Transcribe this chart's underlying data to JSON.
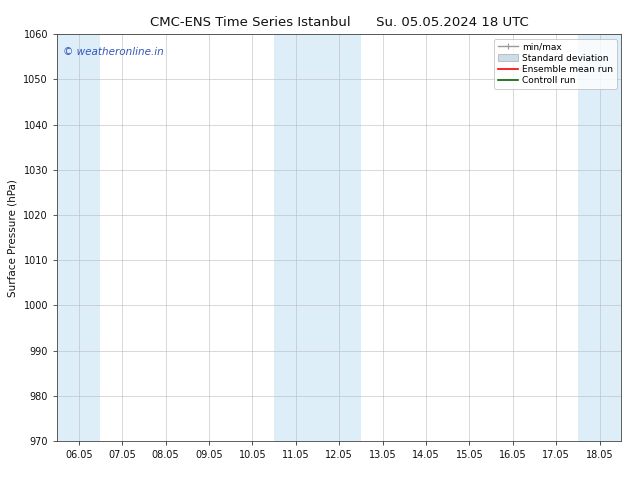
{
  "title": "CMC-ENS Time Series Istanbul",
  "title2": "Su. 05.05.2024 18 UTC",
  "ylabel": "Surface Pressure (hPa)",
  "ylim": [
    970,
    1060
  ],
  "yticks": [
    970,
    980,
    990,
    1000,
    1010,
    1020,
    1030,
    1040,
    1050,
    1060
  ],
  "xtick_labels": [
    "06.05",
    "07.05",
    "08.05",
    "09.05",
    "10.05",
    "11.05",
    "12.05",
    "13.05",
    "14.05",
    "15.05",
    "16.05",
    "17.05",
    "18.05"
  ],
  "xtick_positions": [
    0,
    1,
    2,
    3,
    4,
    5,
    6,
    7,
    8,
    9,
    10,
    11,
    12
  ],
  "xlim": [
    -0.5,
    12.5
  ],
  "shaded_regions": [
    {
      "xmin": -0.5,
      "xmax": 0.5,
      "color": "#ddeef8"
    },
    {
      "xmin": 4.5,
      "xmax": 6.5,
      "color": "#ddeef8"
    },
    {
      "xmin": 11.5,
      "xmax": 12.5,
      "color": "#ddeef8"
    }
  ],
  "watermark_text": "© weatheronline.in",
  "watermark_color": "#3355bb",
  "legend_items": [
    {
      "label": "min/max",
      "color": "#999999",
      "lw": 1.0
    },
    {
      "label": "Standard deviation",
      "color": "#ccdde8",
      "lw": 5
    },
    {
      "label": "Ensemble mean run",
      "color": "red",
      "lw": 1.2
    },
    {
      "label": "Controll run",
      "color": "darkgreen",
      "lw": 1.2
    }
  ],
  "grid_color": "#bbbbbb",
  "bg_color": "#ffffff",
  "font_color": "#111111",
  "title_fontsize": 9.5,
  "label_fontsize": 7.5,
  "tick_fontsize": 7.0,
  "legend_fontsize": 6.5
}
